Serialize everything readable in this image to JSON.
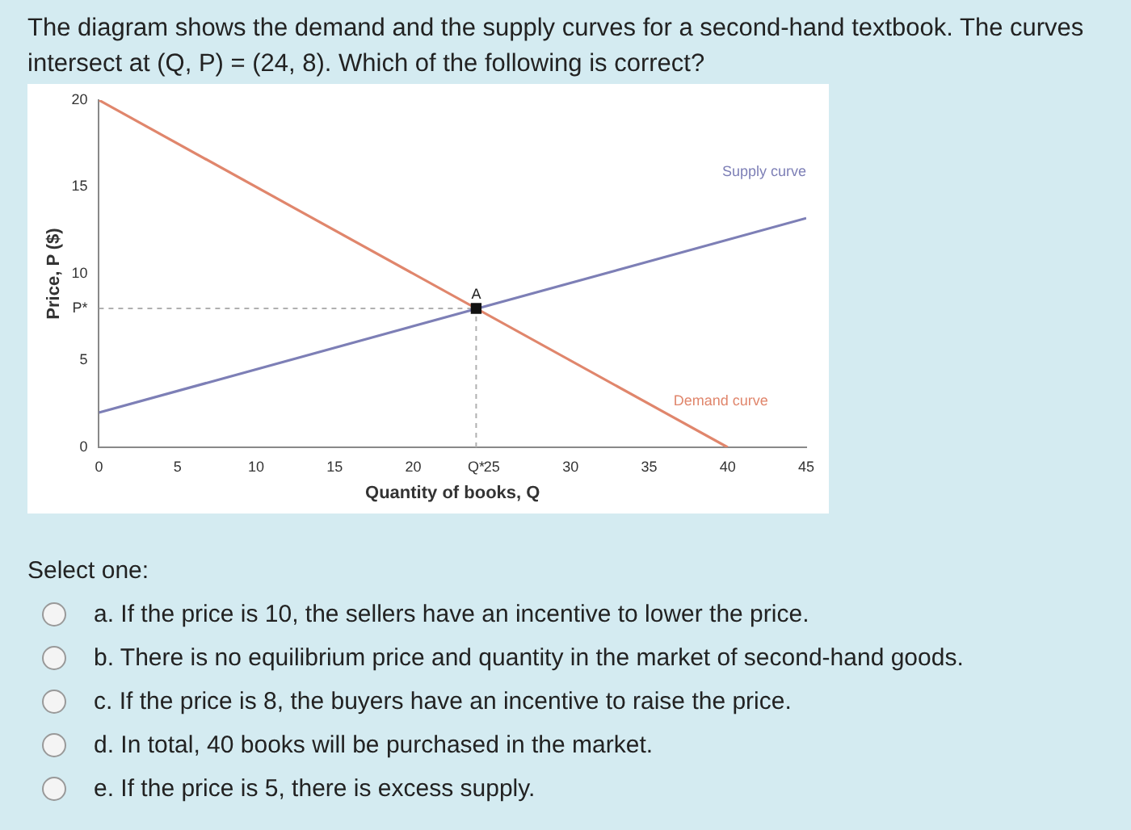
{
  "chart_data": {
    "type": "line",
    "title": "The diagram shows the demand and the supply curves for a second-hand textbook. The curves intersect at (Q, P) = (24, 8). Which of the following is correct?",
    "xlabel": "Quantity of books, Q",
    "ylabel": "Price, P ($)",
    "xlim": [
      0,
      45
    ],
    "ylim": [
      0,
      20
    ],
    "xticks": [
      0,
      5,
      10,
      15,
      20,
      {
        "value": 24,
        "label": "Q*"
      },
      25,
      30,
      35,
      40,
      45
    ],
    "yticks": [
      0,
      5,
      {
        "value": 8,
        "label": "P*"
      },
      10,
      15,
      20
    ],
    "grid": false,
    "legend": false,
    "marker": "none",
    "series": [
      {
        "name": "Supply curve",
        "color": "#7d7fb6",
        "x": [
          0,
          45
        ],
        "values": [
          2,
          13.2
        ]
      },
      {
        "name": "Demand curve",
        "color": "#e0866c",
        "x": [
          0,
          40
        ],
        "values": [
          20,
          0
        ]
      },
      {
        "color": "#b0b0b0",
        "x": [
          0,
          24
        ],
        "values": [
          8,
          8
        ],
        "line_style": "dashed"
      },
      {
        "color": "#b0b0b0",
        "x": [
          24,
          24
        ],
        "values": [
          0,
          8
        ],
        "line_style": "dashed"
      },
      {
        "type": "scatter",
        "color": "#111111",
        "x": [
          24
        ],
        "values": [
          8
        ],
        "marker": "square"
      }
    ],
    "annotations": [
      {
        "text": "A",
        "x": 24,
        "y": 8
      },
      "Select one:",
      "a. If the price is 10, the sellers have an incentive to lower the price.",
      "b. There is no equilibrium price and quantity in the market of second-hand goods.",
      "c. If the price is 8, the buyers have an incentive to raise the price.",
      "d. In total, 40 books will be purchased in the market.",
      "e. If the price is 5, there is excess supply."
    ]
  }
}
